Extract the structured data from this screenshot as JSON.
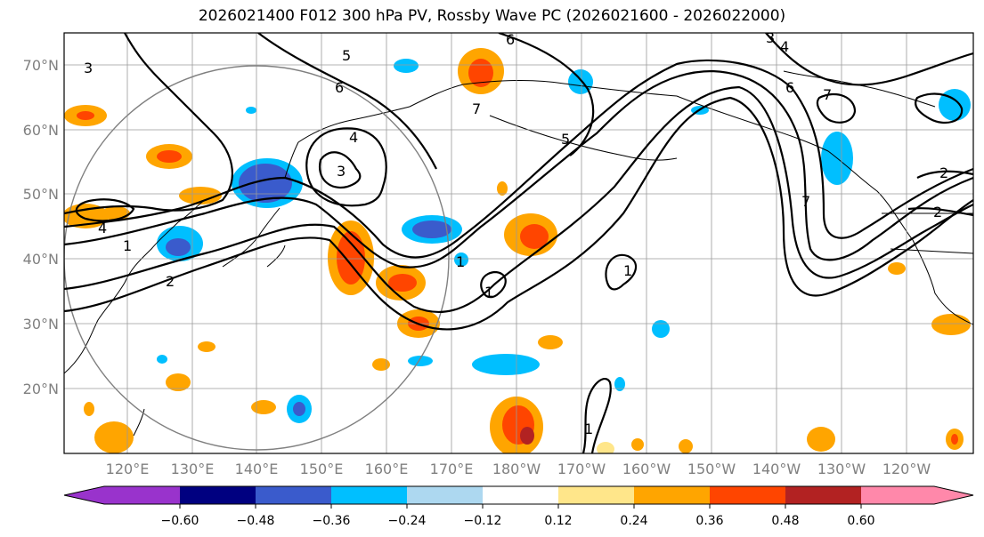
{
  "title": "2026021400 F012 300 hPa PV, Rossby Wave PC (2026021600 - 2026022000)",
  "map": {
    "lon_labels": [
      "120°E",
      "130°E",
      "140°E",
      "150°E",
      "160°E",
      "170°E",
      "180°W",
      "170°W",
      "160°W",
      "150°W",
      "140°W",
      "130°W",
      "120°W"
    ],
    "lat_labels": [
      "70°N",
      "60°N",
      "50°N",
      "40°N",
      "30°N",
      "20°N"
    ],
    "pv_contour_labels": [
      "1",
      "2",
      "3",
      "4",
      "5",
      "6",
      "7"
    ]
  },
  "colorbar": {
    "ticks": [
      "−0.60",
      "−0.48",
      "−0.36",
      "−0.24",
      "−0.12",
      "0.12",
      "0.24",
      "0.36",
      "0.48",
      "0.60"
    ],
    "colors": [
      "#9933cc",
      "#000080",
      "#3a5bcc",
      "#00bfff",
      "#add8f0",
      "#ffffff",
      "#ffe68a",
      "#ffa500",
      "#ff4500",
      "#b22222",
      "#ff88aa"
    ]
  }
}
